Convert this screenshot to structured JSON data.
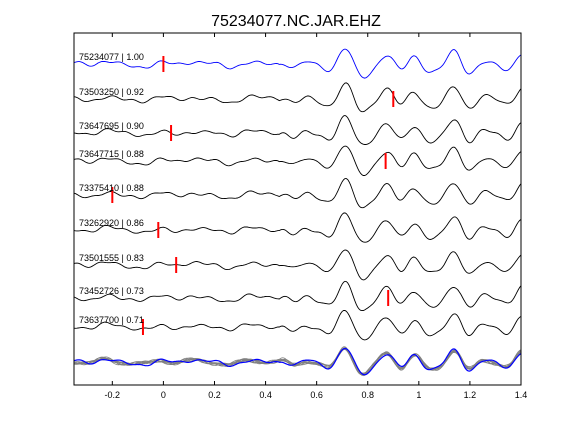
{
  "chart_data": {
    "type": "line",
    "title": "75234077.NC.JAR.EHZ",
    "xlabel": "",
    "ylabel": "",
    "xlim": [
      -0.35,
      1.4
    ],
    "xticks": [
      -0.2,
      0,
      0.2,
      0.4,
      0.6,
      0.8,
      1,
      1.2,
      1.4
    ],
    "xtick_labels": [
      "-0.2",
      "0",
      "0.2",
      "0.4",
      "0.6",
      "0.8",
      "1",
      "1.2",
      "1.4"
    ],
    "grid": false,
    "legend": "none",
    "colors": {
      "reference": "#0000ff",
      "trace": "#000000",
      "pick": "#ff0000",
      "overlay": "#808080"
    },
    "traces": [
      {
        "label": "75234077 | 1.00",
        "pick_x": 0.0,
        "reference": true
      },
      {
        "label": "73503250 | 0.92",
        "pick_x": 0.9
      },
      {
        "label": "73647695 | 0.90",
        "pick_x": 0.03
      },
      {
        "label": "73647715 | 0.88",
        "pick_x": 0.87
      },
      {
        "label": "73375410 | 0.88",
        "pick_x": -0.2
      },
      {
        "label": "73262920 | 0.86",
        "pick_x": -0.02
      },
      {
        "label": "73501555 | 0.83",
        "pick_x": 0.05
      },
      {
        "label": "73452726 | 0.73",
        "pick_x": 0.88
      },
      {
        "label": "73637700 | 0.71",
        "pick_x": -0.08
      }
    ]
  }
}
